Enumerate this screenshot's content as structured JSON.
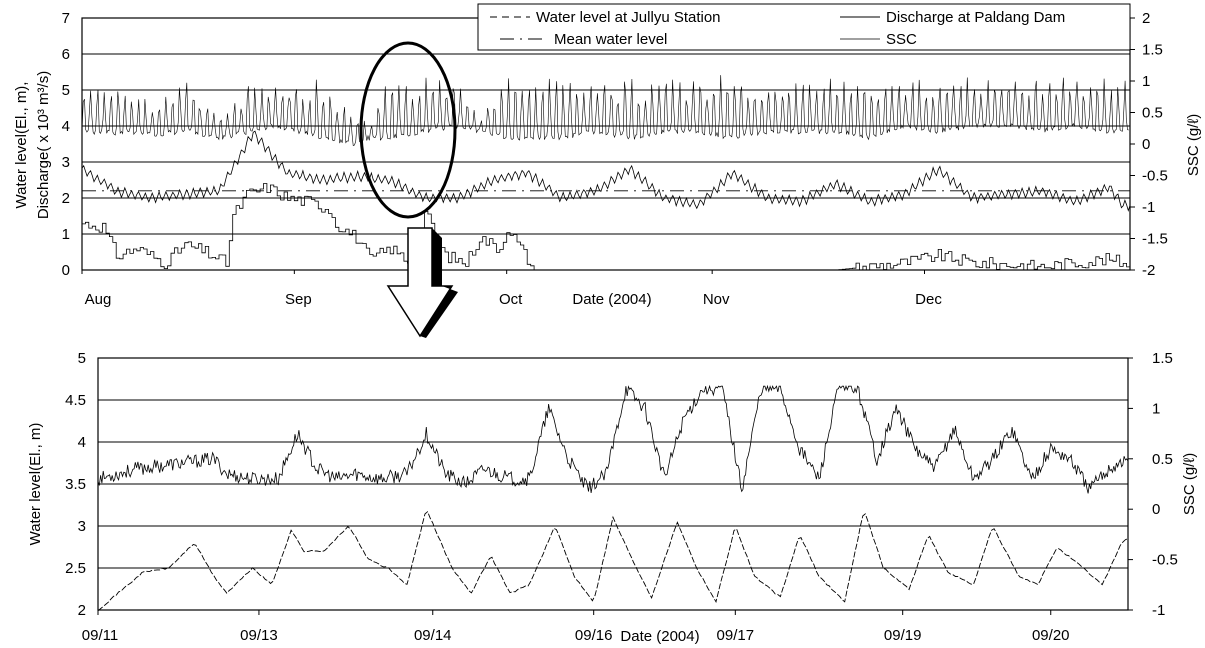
{
  "chart_data": [
    {
      "type": "line",
      "title": "",
      "xlabel": "Date (2004)",
      "ylabel": "Water level(El., m), Discharge( x 10³ m³/s)",
      "ylabel_line1": "Water level(El., m),",
      "ylabel_line2": "Discharge( x 10³ m³/s)",
      "y2label": "SSC (g/ℓ)",
      "ylim": [
        0,
        7
      ],
      "y2lim": [
        -2,
        2
      ],
      "yticks": [
        0,
        1,
        2,
        3,
        4,
        5,
        6,
        7
      ],
      "y2ticks": [
        "2",
        "1.5",
        "1",
        "0.5",
        "0",
        "-0.5",
        "-1",
        "-1.5",
        "-2"
      ],
      "x_tick_labels": [
        "Aug",
        "Sep",
        "Oct",
        "Nov",
        "Dec"
      ],
      "x_tick_dates": [
        "08/01",
        "09/01",
        "10/01",
        "11/01",
        "12/01"
      ],
      "x_range": [
        "08/01",
        "12/31"
      ],
      "grid": "horizontal",
      "legend": {
        "placement": "top-right",
        "entries": [
          "Water level at Jullyu Station",
          "Discharge at Paldang Dam",
          "Mean water level",
          "SSC"
        ]
      },
      "series": [
        {
          "name": "SSC",
          "axis": "y2",
          "day": [
            0,
            10,
            15,
            20,
            25,
            28,
            35,
            40,
            42,
            45,
            50,
            55,
            58,
            62,
            70,
            75,
            80,
            85,
            90,
            95,
            100,
            105,
            110,
            115,
            120,
            125,
            130,
            135,
            140,
            145,
            150,
            152
          ],
          "baseline": [
            0.2,
            0.15,
            0.2,
            0.1,
            0.2,
            0.3,
            0.1,
            0.0,
            0.1,
            0.1,
            0.2,
            0.3,
            0.2,
            0.1,
            0.1,
            0.2,
            0.1,
            0.2,
            0.2,
            0.1,
            0.2,
            0.2,
            0.2,
            0.1,
            0.3,
            0.2,
            0.3,
            0.3,
            0.2,
            0.3,
            0.2,
            0.2
          ],
          "peak": [
            1.1,
            0.8,
            1.1,
            0.5,
            1.1,
            1.1,
            1.1,
            0.5,
            0.3,
            1.1,
            1.1,
            1.1,
            0.4,
            1.1,
            1.1,
            1.1,
            1.1,
            1.1,
            1.1,
            1.1,
            1.1,
            1.1,
            1.1,
            1.1,
            1.1,
            1.1,
            1.1,
            1.1,
            1.1,
            1.1,
            1.1,
            1.1
          ]
        },
        {
          "name": "Water level at Jullyu Station",
          "axis": "y",
          "day": [
            0,
            5,
            10,
            15,
            20,
            25,
            30,
            35,
            40,
            45,
            50,
            55,
            60,
            65,
            70,
            75,
            80,
            85,
            90,
            95,
            100,
            105,
            110,
            115,
            120,
            125,
            130,
            135,
            140,
            145,
            150,
            152
          ],
          "values": [
            2.8,
            2.2,
            2.0,
            2.1,
            2.2,
            3.8,
            2.7,
            2.5,
            2.6,
            2.5,
            2.0,
            2.0,
            2.5,
            2.7,
            2.0,
            2.2,
            2.8,
            2.0,
            1.8,
            2.7,
            2.0,
            1.9,
            2.4,
            1.9,
            2.1,
            2.8,
            2.0,
            2.1,
            2.2,
            1.9,
            2.3,
            1.8
          ]
        },
        {
          "name": "Mean water level",
          "axis": "y",
          "values": [
            2.2
          ]
        },
        {
          "name": "Discharge at Paldang Dam",
          "axis": "y",
          "day": [
            0,
            3,
            5,
            8,
            12,
            15,
            18,
            21,
            22,
            24,
            27,
            30,
            33,
            36,
            37,
            40,
            42,
            45,
            48,
            50,
            53,
            56,
            58,
            61,
            62,
            65,
            66,
            100,
            110,
            120,
            125,
            130,
            140,
            150,
            152
          ],
          "values": [
            1.3,
            1.2,
            0.4,
            0.6,
            0.2,
            0.7,
            0.5,
            0.2,
            1.5,
            2.1,
            2.3,
            2.0,
            1.9,
            1.7,
            1.3,
            0.9,
            0.3,
            0.6,
            0.2,
            1.6,
            0.4,
            0.2,
            0.9,
            0.6,
            1.2,
            0.3,
            0.0,
            0.0,
            0.0,
            0.2,
            0.4,
            0.2,
            0.1,
            0.3,
            0.2
          ]
        }
      ]
    },
    {
      "type": "line",
      "title": "",
      "xlabel": "Date (2004)",
      "ylabel": "Water level(El., m)",
      "y2label": "SSC (g/ℓ)",
      "ylim": [
        2,
        5
      ],
      "y2lim": [
        -1,
        1.5
      ],
      "yticks": [
        "2",
        "2.5",
        "3",
        "3.5",
        "4",
        "4.5",
        "5"
      ],
      "y2ticks": [
        "1.5",
        "1",
        "0.5",
        "0",
        "-0.5",
        "-1"
      ],
      "x_tick_labels": [
        "09/11",
        "09/13",
        "09/14",
        "09/16",
        "09/17",
        "09/19",
        "09/20"
      ],
      "x_tick_pos": [
        0,
        1.25,
        2.6,
        3.85,
        4.95,
        6.25,
        7.4
      ],
      "x_range": [
        0,
        8.0
      ],
      "grid": "horizontal",
      "series": [
        {
          "name": "SSC",
          "axis": "y2",
          "t": [
            0,
            0.3,
            0.6,
            0.9,
            1.0,
            1.2,
            1.4,
            1.55,
            1.7,
            1.85,
            2.0,
            2.2,
            2.4,
            2.55,
            2.7,
            2.85,
            3.0,
            3.2,
            3.35,
            3.5,
            3.65,
            3.8,
            3.95,
            4.1,
            4.25,
            4.4,
            4.55,
            4.7,
            4.85,
            5.0,
            5.15,
            5.3,
            5.45,
            5.6,
            5.75,
            5.9,
            6.05,
            6.2,
            6.35,
            6.5,
            6.65,
            6.8,
            6.95,
            7.1,
            7.25,
            7.4,
            7.55,
            7.7,
            7.85,
            8.0
          ],
          "values": [
            0.3,
            0.4,
            0.45,
            0.5,
            0.35,
            0.3,
            0.3,
            0.75,
            0.4,
            0.3,
            0.35,
            0.3,
            0.35,
            0.75,
            0.35,
            0.25,
            0.4,
            0.3,
            0.3,
            1.0,
            0.5,
            0.2,
            0.35,
            1.2,
            1.0,
            0.3,
            0.9,
            1.2,
            1.2,
            0.2,
            1.2,
            1.2,
            0.6,
            0.3,
            1.2,
            1.2,
            0.5,
            1.0,
            0.6,
            0.4,
            0.8,
            0.3,
            0.5,
            0.8,
            0.3,
            0.6,
            0.5,
            0.2,
            0.4,
            0.5
          ]
        },
        {
          "name": "Water level at Jullyu Station",
          "axis": "y",
          "t": [
            0,
            0.35,
            0.55,
            0.75,
            0.9,
            1.0,
            1.2,
            1.35,
            1.5,
            1.6,
            1.75,
            1.95,
            2.1,
            2.25,
            2.4,
            2.55,
            2.75,
            2.9,
            3.05,
            3.2,
            3.35,
            3.55,
            3.7,
            3.85,
            4.0,
            4.15,
            4.3,
            4.5,
            4.65,
            4.8,
            4.95,
            5.1,
            5.3,
            5.45,
            5.6,
            5.8,
            5.95,
            6.1,
            6.3,
            6.45,
            6.6,
            6.8,
            6.95,
            7.15,
            7.3,
            7.45,
            7.65,
            7.8,
            7.95,
            8.0
          ],
          "values": [
            2.0,
            2.45,
            2.5,
            2.8,
            2.4,
            2.2,
            2.5,
            2.3,
            2.95,
            2.7,
            2.7,
            3.0,
            2.6,
            2.5,
            2.3,
            3.2,
            2.5,
            2.2,
            2.65,
            2.2,
            2.3,
            3.0,
            2.4,
            2.1,
            3.1,
            2.6,
            2.15,
            3.05,
            2.5,
            2.1,
            3.0,
            2.4,
            2.15,
            2.9,
            2.4,
            2.1,
            3.2,
            2.5,
            2.25,
            2.9,
            2.45,
            2.3,
            3.0,
            2.4,
            2.3,
            2.75,
            2.5,
            2.3,
            2.8,
            2.85
          ]
        }
      ]
    }
  ]
}
